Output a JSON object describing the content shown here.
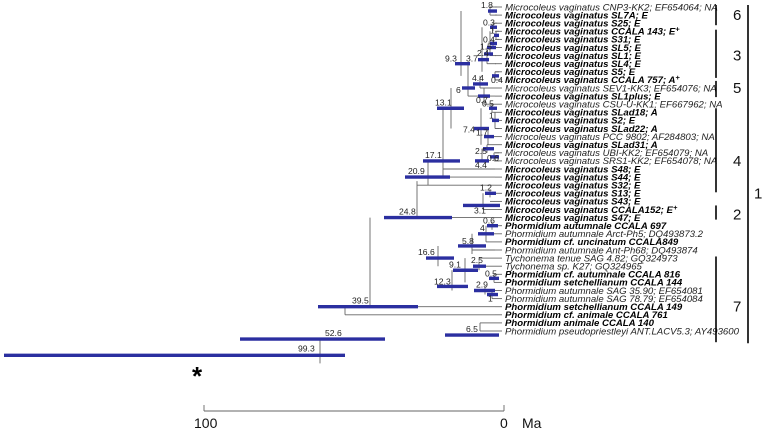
{
  "tips": [
    {
      "label": "Microcoleus vaginatus CNP3-KK2; EF654064; NA",
      "bold": false
    },
    {
      "label": "Microcoleus vaginatus SL7A; E",
      "bold": true
    },
    {
      "label": "Microcoleus vaginatus S25; E",
      "bold": true
    },
    {
      "label": "Microcoleus vaginatus CCALA 143; E",
      "bold": true,
      "plus": true
    },
    {
      "label": "Microcoleus vaginatus S31; E",
      "bold": true
    },
    {
      "label": "Microcoleus vaginatus SL5; E",
      "bold": true
    },
    {
      "label": "Microcoleus vaginatus SL1; E",
      "bold": true
    },
    {
      "label": "Microcoleus vaginatus SL4; E",
      "bold": true
    },
    {
      "label": "Microcoleus vaginatus S5; E",
      "bold": true
    },
    {
      "label": "Microcoleus vaginatus CCALA 757; A",
      "bold": true,
      "plus": true
    },
    {
      "label": "Microcoleus vaginatus SEV1-KK3; EF654076; NA",
      "bold": false
    },
    {
      "label": "Microcoleus vaginatus SL1plus; E",
      "bold": true
    },
    {
      "label": "Microcoleus vaginatus CSU-U-KK1; EF667962; NA",
      "bold": false
    },
    {
      "label": "Microcoleus vaginatus SLad18; A",
      "bold": true
    },
    {
      "label": "Microcoleus vaginatus S2; E",
      "bold": true
    },
    {
      "label": "Microcoleus vaginatus SLad22; A",
      "bold": true
    },
    {
      "label": "Microcoleus vaginatus PCC 9802; AF284803; NA",
      "bold": false
    },
    {
      "label": "Microcoleus vaginatus SLad31; A",
      "bold": true
    },
    {
      "label": "Microcoleus vaginatus UBI-KK2; EF654079; NA",
      "bold": false
    },
    {
      "label": "Microcoleus vaginatus SRS1-KK2; EF654078; NA",
      "bold": false
    },
    {
      "label": "Microcoleus vaginatus S48; E",
      "bold": true
    },
    {
      "label": "Microcoleus vaginatus S44; E",
      "bold": true
    },
    {
      "label": "Microcoleus vaginatus S32; E",
      "bold": true
    },
    {
      "label": "Microcoleus vaginatus S13; E",
      "bold": true
    },
    {
      "label": "Microcoleus vaginatus S43; E",
      "bold": true
    },
    {
      "label": "Microcoleus vaginatus CCALA152; E",
      "bold": true,
      "plus": true
    },
    {
      "label": "Microcoleus vaginatus S47; E",
      "bold": true
    },
    {
      "label": "Phormidium autumnale CCALA 697",
      "bold": true
    },
    {
      "label": "Phormidium autumnale Arct-Ph5; DQ493873.2",
      "bold": false
    },
    {
      "label": "Phormidium cf. uncinatum CCALA849",
      "bold": true
    },
    {
      "label": "Phormidium autumnale Ant-Ph68; DQ493874",
      "bold": false
    },
    {
      "label": "Tychonema tenue SAG 4.82; GQ324973",
      "bold": false
    },
    {
      "label": "Tychonema sp. K27; GQ324965",
      "bold": false
    },
    {
      "label": "Phormidium cf. autumnale CCALA 816",
      "bold": true
    },
    {
      "label": "Phormidium setchellianum CCALA 144",
      "bold": true
    },
    {
      "label": "Phormidium autumnale SAG 35.90; EF654081",
      "bold": false
    },
    {
      "label": "Phormidium autumnale SAG 78.79; EF654084",
      "bold": false
    },
    {
      "label": "Phormidium setchellianum CCALA 149",
      "bold": true
    },
    {
      "label": "Phormidium cf. animale CCALA 761",
      "bold": true
    },
    {
      "label": "Phormidium animale CCALA 140",
      "bold": true
    },
    {
      "label": "Phormidium pseudopriestleyi ANT.LACV5.3; AY493600",
      "bold": false
    }
  ],
  "plus_sign": "+",
  "node_ages": [
    {
      "id": "n1",
      "label": "1.8"
    },
    {
      "id": "n2",
      "label": "0.3"
    },
    {
      "id": "n3",
      "label": "1"
    },
    {
      "id": "n4",
      "label": "0.4"
    },
    {
      "id": "n5",
      "label": "1.5"
    },
    {
      "id": "n6",
      "label": "2.4"
    },
    {
      "id": "n7",
      "label": "3.7"
    },
    {
      "id": "n8",
      "label": "0.4"
    },
    {
      "id": "n9",
      "label": "9.3"
    },
    {
      "id": "n10",
      "label": "4.4"
    },
    {
      "id": "n11",
      "label": "6"
    },
    {
      "id": "n12",
      "label": "0.7"
    },
    {
      "id": "n13",
      "label": "13.1"
    },
    {
      "id": "n14",
      "label": "0.5"
    },
    {
      "id": "n15",
      "label": "1"
    },
    {
      "id": "n16",
      "label": "7.4"
    },
    {
      "id": "n17",
      "label": "1.7"
    },
    {
      "id": "n18",
      "label": "2.5"
    },
    {
      "id": "n19",
      "label": "0.6"
    },
    {
      "id": "n20",
      "label": "4.4"
    },
    {
      "id": "n21",
      "label": "17.1"
    },
    {
      "id": "n22",
      "label": "20.9"
    },
    {
      "id": "n23",
      "label": "1.2"
    },
    {
      "id": "n24",
      "label": "3.1"
    },
    {
      "id": "n25",
      "label": "24.8"
    },
    {
      "id": "n26",
      "label": "0.6"
    },
    {
      "id": "n27",
      "label": "4"
    },
    {
      "id": "n28",
      "label": "5.8"
    },
    {
      "id": "n29",
      "label": "16.6"
    },
    {
      "id": "n30",
      "label": "9.1"
    },
    {
      "id": "n31",
      "label": "2.5"
    },
    {
      "id": "n32",
      "label": "12.3"
    },
    {
      "id": "n33",
      "label": "0.5"
    },
    {
      "id": "n34",
      "label": "2.9"
    },
    {
      "id": "n35",
      "label": "1"
    },
    {
      "id": "n36",
      "label": "39.5"
    },
    {
      "id": "n37",
      "label": "52.6"
    },
    {
      "id": "n38",
      "label": "99.3"
    },
    {
      "id": "n39",
      "label": "6.5"
    }
  ],
  "clades": [
    {
      "id": "c6",
      "label": "6"
    },
    {
      "id": "c3",
      "label": "3"
    },
    {
      "id": "c5",
      "label": "5"
    },
    {
      "id": "c4",
      "label": "4"
    },
    {
      "id": "c1",
      "label": "1"
    },
    {
      "id": "c2",
      "label": "2"
    },
    {
      "id": "c7",
      "label": "7"
    }
  ],
  "calibration_marker": "*",
  "axis": {
    "ticks": [
      "100",
      "0"
    ],
    "unit": "Ma"
  }
}
